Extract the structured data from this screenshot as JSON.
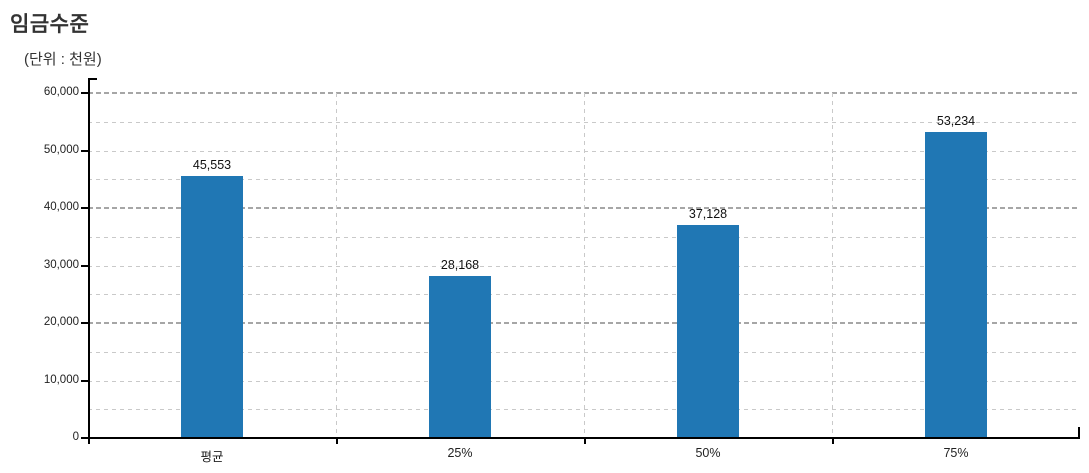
{
  "header": {
    "title": "임금수준",
    "unit_label": "(단위 : 천원)"
  },
  "chart_data": {
    "type": "bar",
    "title": "임금수준",
    "unit": "(단위 : 천원)",
    "categories": [
      "평균",
      "25%",
      "50%",
      "75%"
    ],
    "values": [
      45553,
      28168,
      37128,
      53234
    ],
    "value_labels": [
      "45,553",
      "28,168",
      "37,128",
      "53,234"
    ],
    "xlabel": "",
    "ylabel": "",
    "ylim": [
      0,
      60000
    ],
    "y_tick_interval": 10000,
    "y_tick_labels": [
      "0",
      "10,000",
      "20,000",
      "30,000",
      "40,000",
      "50,000",
      "60,000"
    ],
    "grid": true,
    "grid_interval": 5000,
    "major_grid_interval": 20000,
    "legend_position": "none",
    "colors": {
      "bar": "#2077b4",
      "grid_minor": "#c9c9c9",
      "grid_major": "#a6a6a6",
      "axis": "#000000",
      "title_text": "#333333",
      "label_text": "#111111",
      "background": "#ffffff"
    }
  }
}
